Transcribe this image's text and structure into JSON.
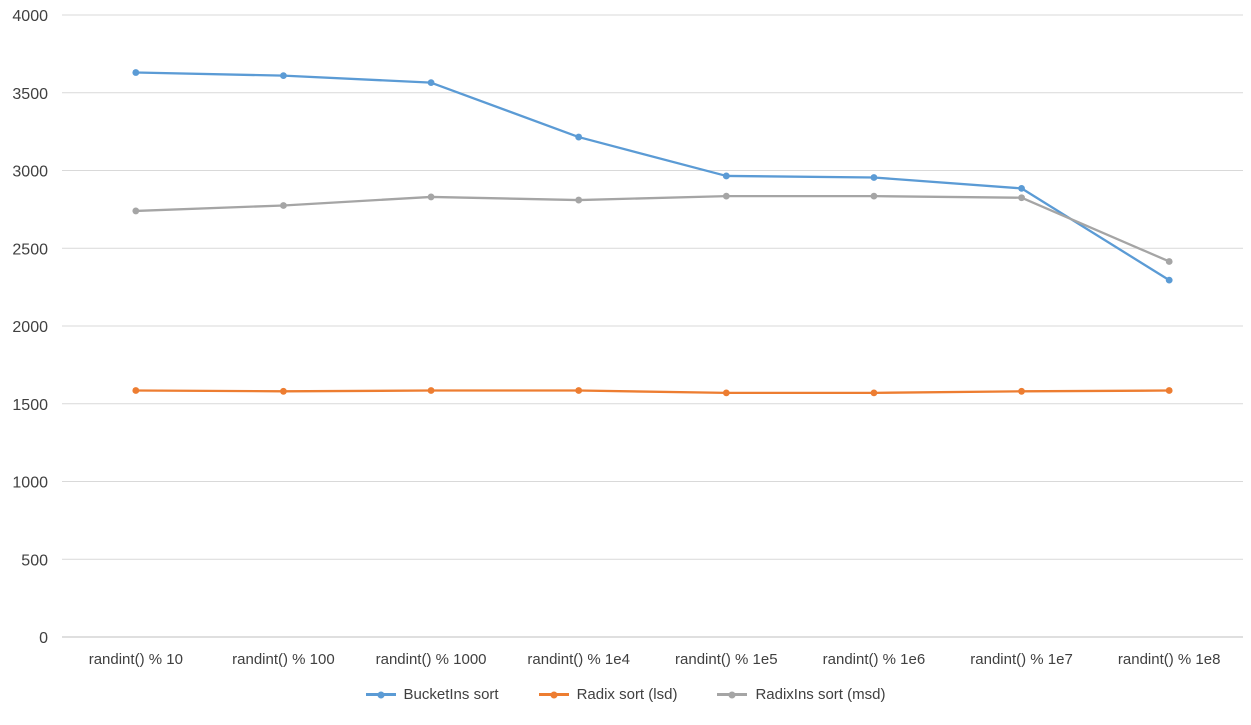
{
  "colors": {
    "gridline": "#D9D9D9",
    "axis_line": "#BFBFBF",
    "text": "#404040",
    "background": "#FFFFFF",
    "series_blue": "#5B9BD5",
    "series_orange": "#ED7D31",
    "series_gray": "#A5A5A5"
  },
  "chart_data": {
    "type": "line",
    "title": "",
    "xlabel": "",
    "ylabel": "",
    "categories": [
      "randint() % 10",
      "randint() % 100",
      "randint() % 1000",
      "randint() % 1e4",
      "randint() % 1e5",
      "randint() % 1e6",
      "randint() % 1e7",
      "randint() % 1e8"
    ],
    "series": [
      {
        "name": "BucketIns sort",
        "color": "#5B9BD5",
        "values": [
          3630,
          3610,
          3565,
          3215,
          2965,
          2955,
          2885,
          2295
        ]
      },
      {
        "name": "Radix sort (lsd)",
        "color": "#ED7D31",
        "values": [
          1585,
          1580,
          1585,
          1585,
          1570,
          1570,
          1580,
          1585
        ]
      },
      {
        "name": "RadixIns sort (msd)",
        "color": "#A5A5A5",
        "values": [
          2740,
          2775,
          2830,
          2810,
          2835,
          2835,
          2825,
          2415
        ]
      }
    ],
    "ylim": [
      0,
      4000
    ],
    "ytick_step": 500,
    "yticks": [
      0,
      500,
      1000,
      1500,
      2000,
      2500,
      3000,
      3500,
      4000
    ],
    "grid": true,
    "legend_position": "bottom",
    "marker": "circle"
  }
}
